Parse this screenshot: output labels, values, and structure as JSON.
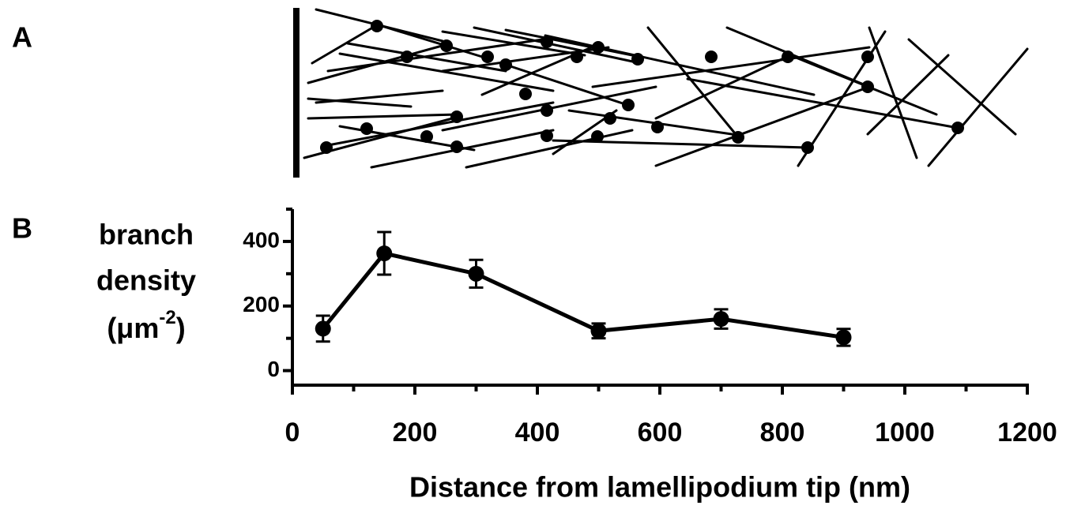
{
  "chart_data": {
    "type": "line",
    "panel_labels": [
      "A",
      "B"
    ],
    "ylabel": {
      "lines": [
        "branch",
        "density"
      ],
      "unit": "(μm",
      "exponent": "-2",
      "close": ")"
    },
    "xlabel": "Distance from lamellipodium tip (nm)",
    "x": [
      50,
      150,
      300,
      500,
      700,
      900
    ],
    "series": [
      {
        "color": "#000000",
        "values": [
          130,
          363,
          300,
          123,
          160,
          103
        ],
        "errors": [
          40,
          66,
          43,
          23,
          30,
          26
        ]
      }
    ],
    "xlim": [
      0,
      1200
    ],
    "xticks": [
      0,
      200,
      400,
      600,
      800,
      1000,
      1200
    ],
    "ylim": [
      -45,
      500
    ],
    "yticks": [
      0,
      200,
      400
    ]
  }
}
